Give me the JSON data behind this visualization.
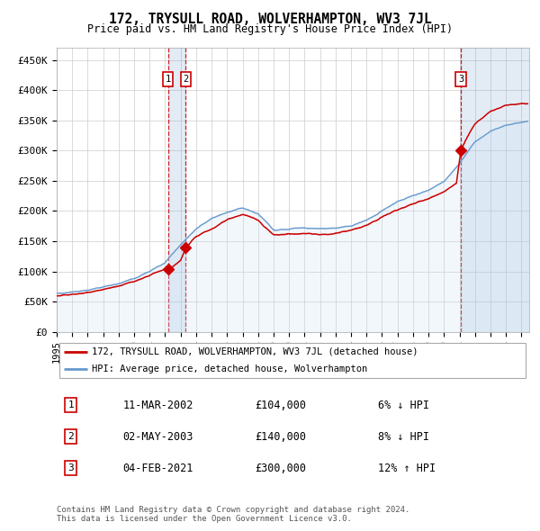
{
  "title": "172, TRYSULL ROAD, WOLVERHAMPTON, WV3 7JL",
  "subtitle": "Price paid vs. HM Land Registry's House Price Index (HPI)",
  "hpi_line_color": "#6699cc",
  "hpi_fill_color": "#cce0f5",
  "price_line_color": "#cc0000",
  "sale_marker_color": "#cc0000",
  "vline_color": "#cc0000",
  "ylim": [
    0,
    470000
  ],
  "yticks": [
    0,
    50000,
    100000,
    150000,
    200000,
    250000,
    300000,
    350000,
    400000,
    450000
  ],
  "xlim_start": 1995.0,
  "xlim_end": 2025.5,
  "sale_dates": [
    2002.19,
    2003.33,
    2021.09
  ],
  "sale_prices": [
    104000,
    140000,
    300000
  ],
  "sale_labels": [
    "1",
    "2",
    "3"
  ],
  "legend_entries": [
    "172, TRYSULL ROAD, WOLVERHAMPTON, WV3 7JL (detached house)",
    "HPI: Average price, detached house, Wolverhampton"
  ],
  "table_rows": [
    [
      "1",
      "11-MAR-2002",
      "£104,000",
      "6% ↓ HPI"
    ],
    [
      "2",
      "02-MAY-2003",
      "£140,000",
      "8% ↓ HPI"
    ],
    [
      "3",
      "04-FEB-2021",
      "£300,000",
      "12% ↑ HPI"
    ]
  ],
  "footer": "Contains HM Land Registry data © Crown copyright and database right 2024.\nThis data is licensed under the Open Government Licence v3.0.",
  "background_color": "#ffffff",
  "grid_color": "#cccccc",
  "hpi_key_years": [
    1995,
    1996,
    1997,
    1998,
    1999,
    2000,
    2001,
    2002,
    2003,
    2004,
    2005,
    2006,
    2007,
    2008,
    2009,
    2010,
    2011,
    2012,
    2013,
    2014,
    2015,
    2016,
    2017,
    2018,
    2019,
    2020,
    2021,
    2022,
    2023,
    2024,
    2025.4
  ],
  "hpi_key_values": [
    64000,
    66000,
    69000,
    74000,
    80000,
    88000,
    100000,
    115000,
    145000,
    170000,
    188000,
    198000,
    205000,
    195000,
    168000,
    170000,
    172000,
    170000,
    172000,
    175000,
    185000,
    200000,
    215000,
    225000,
    235000,
    248000,
    278000,
    315000,
    332000,
    342000,
    348000
  ],
  "price_key_years": [
    1995,
    1996,
    1997,
    1998,
    1999,
    2000,
    2001,
    2002,
    2002.2,
    2002.5,
    2003.0,
    2003.35,
    2004,
    2005,
    2006,
    2007,
    2008,
    2009,
    2010,
    2011,
    2012,
    2013,
    2014,
    2015,
    2016,
    2017,
    2018,
    2019,
    2020,
    2020.8,
    2021.09,
    2021.4,
    2022,
    2023,
    2024,
    2025.4
  ],
  "price_key_values": [
    60000,
    62000,
    65000,
    70000,
    76000,
    83000,
    94000,
    104000,
    104000,
    108000,
    118000,
    140000,
    158000,
    170000,
    185000,
    195000,
    185000,
    160000,
    162000,
    163000,
    161000,
    163000,
    168000,
    176000,
    190000,
    202000,
    212000,
    220000,
    232000,
    245000,
    300000,
    318000,
    345000,
    365000,
    375000,
    378000
  ]
}
